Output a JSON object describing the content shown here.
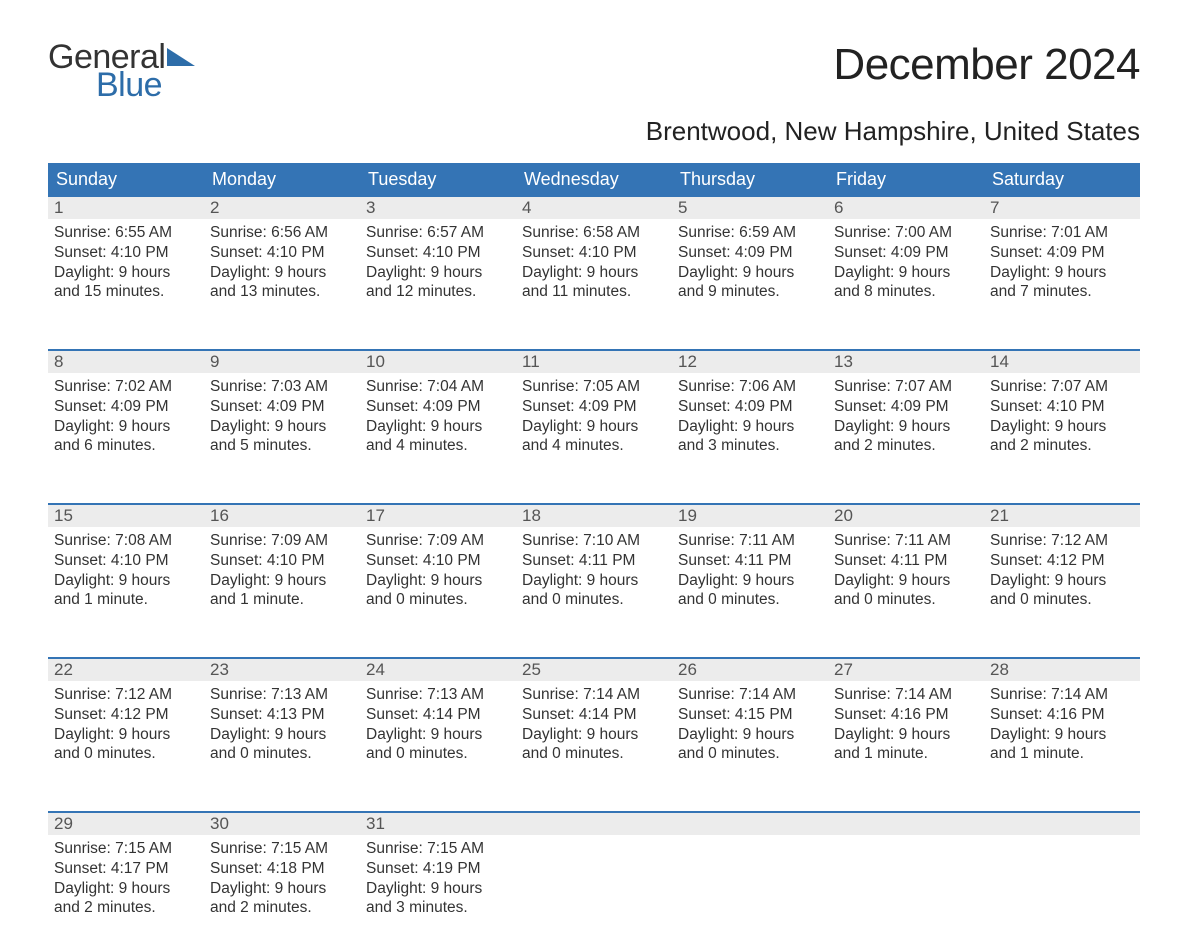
{
  "logo": {
    "line1": "General",
    "line2": "Blue",
    "icon_color": "#2d6da9",
    "text_color_1": "#333333",
    "text_color_2": "#2d6da9"
  },
  "title": "December 2024",
  "subtitle": "Brentwood, New Hampshire, United States",
  "colors": {
    "header_bg": "#3474b5",
    "header_text": "#ffffff",
    "daynum_bg": "#ececec",
    "daynum_text": "#555555",
    "body_text": "#333333",
    "week_border": "#3474b5",
    "page_bg": "#ffffff"
  },
  "fontsize": {
    "title": 44,
    "subtitle": 26,
    "dayhead": 18,
    "daynum": 17,
    "body": 15.5
  },
  "day_headers": [
    "Sunday",
    "Monday",
    "Tuesday",
    "Wednesday",
    "Thursday",
    "Friday",
    "Saturday"
  ],
  "weeks": [
    [
      {
        "n": "1",
        "sr": "Sunrise: 6:55 AM",
        "ss": "Sunset: 4:10 PM",
        "d1": "Daylight: 9 hours",
        "d2": "and 15 minutes."
      },
      {
        "n": "2",
        "sr": "Sunrise: 6:56 AM",
        "ss": "Sunset: 4:10 PM",
        "d1": "Daylight: 9 hours",
        "d2": "and 13 minutes."
      },
      {
        "n": "3",
        "sr": "Sunrise: 6:57 AM",
        "ss": "Sunset: 4:10 PM",
        "d1": "Daylight: 9 hours",
        "d2": "and 12 minutes."
      },
      {
        "n": "4",
        "sr": "Sunrise: 6:58 AM",
        "ss": "Sunset: 4:10 PM",
        "d1": "Daylight: 9 hours",
        "d2": "and 11 minutes."
      },
      {
        "n": "5",
        "sr": "Sunrise: 6:59 AM",
        "ss": "Sunset: 4:09 PM",
        "d1": "Daylight: 9 hours",
        "d2": "and 9 minutes."
      },
      {
        "n": "6",
        "sr": "Sunrise: 7:00 AM",
        "ss": "Sunset: 4:09 PM",
        "d1": "Daylight: 9 hours",
        "d2": "and 8 minutes."
      },
      {
        "n": "7",
        "sr": "Sunrise: 7:01 AM",
        "ss": "Sunset: 4:09 PM",
        "d1": "Daylight: 9 hours",
        "d2": "and 7 minutes."
      }
    ],
    [
      {
        "n": "8",
        "sr": "Sunrise: 7:02 AM",
        "ss": "Sunset: 4:09 PM",
        "d1": "Daylight: 9 hours",
        "d2": "and 6 minutes."
      },
      {
        "n": "9",
        "sr": "Sunrise: 7:03 AM",
        "ss": "Sunset: 4:09 PM",
        "d1": "Daylight: 9 hours",
        "d2": "and 5 minutes."
      },
      {
        "n": "10",
        "sr": "Sunrise: 7:04 AM",
        "ss": "Sunset: 4:09 PM",
        "d1": "Daylight: 9 hours",
        "d2": "and 4 minutes."
      },
      {
        "n": "11",
        "sr": "Sunrise: 7:05 AM",
        "ss": "Sunset: 4:09 PM",
        "d1": "Daylight: 9 hours",
        "d2": "and 4 minutes."
      },
      {
        "n": "12",
        "sr": "Sunrise: 7:06 AM",
        "ss": "Sunset: 4:09 PM",
        "d1": "Daylight: 9 hours",
        "d2": "and 3 minutes."
      },
      {
        "n": "13",
        "sr": "Sunrise: 7:07 AM",
        "ss": "Sunset: 4:09 PM",
        "d1": "Daylight: 9 hours",
        "d2": "and 2 minutes."
      },
      {
        "n": "14",
        "sr": "Sunrise: 7:07 AM",
        "ss": "Sunset: 4:10 PM",
        "d1": "Daylight: 9 hours",
        "d2": "and 2 minutes."
      }
    ],
    [
      {
        "n": "15",
        "sr": "Sunrise: 7:08 AM",
        "ss": "Sunset: 4:10 PM",
        "d1": "Daylight: 9 hours",
        "d2": "and 1 minute."
      },
      {
        "n": "16",
        "sr": "Sunrise: 7:09 AM",
        "ss": "Sunset: 4:10 PM",
        "d1": "Daylight: 9 hours",
        "d2": "and 1 minute."
      },
      {
        "n": "17",
        "sr": "Sunrise: 7:09 AM",
        "ss": "Sunset: 4:10 PM",
        "d1": "Daylight: 9 hours",
        "d2": "and 0 minutes."
      },
      {
        "n": "18",
        "sr": "Sunrise: 7:10 AM",
        "ss": "Sunset: 4:11 PM",
        "d1": "Daylight: 9 hours",
        "d2": "and 0 minutes."
      },
      {
        "n": "19",
        "sr": "Sunrise: 7:11 AM",
        "ss": "Sunset: 4:11 PM",
        "d1": "Daylight: 9 hours",
        "d2": "and 0 minutes."
      },
      {
        "n": "20",
        "sr": "Sunrise: 7:11 AM",
        "ss": "Sunset: 4:11 PM",
        "d1": "Daylight: 9 hours",
        "d2": "and 0 minutes."
      },
      {
        "n": "21",
        "sr": "Sunrise: 7:12 AM",
        "ss": "Sunset: 4:12 PM",
        "d1": "Daylight: 9 hours",
        "d2": "and 0 minutes."
      }
    ],
    [
      {
        "n": "22",
        "sr": "Sunrise: 7:12 AM",
        "ss": "Sunset: 4:12 PM",
        "d1": "Daylight: 9 hours",
        "d2": "and 0 minutes."
      },
      {
        "n": "23",
        "sr": "Sunrise: 7:13 AM",
        "ss": "Sunset: 4:13 PM",
        "d1": "Daylight: 9 hours",
        "d2": "and 0 minutes."
      },
      {
        "n": "24",
        "sr": "Sunrise: 7:13 AM",
        "ss": "Sunset: 4:14 PM",
        "d1": "Daylight: 9 hours",
        "d2": "and 0 minutes."
      },
      {
        "n": "25",
        "sr": "Sunrise: 7:14 AM",
        "ss": "Sunset: 4:14 PM",
        "d1": "Daylight: 9 hours",
        "d2": "and 0 minutes."
      },
      {
        "n": "26",
        "sr": "Sunrise: 7:14 AM",
        "ss": "Sunset: 4:15 PM",
        "d1": "Daylight: 9 hours",
        "d2": "and 0 minutes."
      },
      {
        "n": "27",
        "sr": "Sunrise: 7:14 AM",
        "ss": "Sunset: 4:16 PM",
        "d1": "Daylight: 9 hours",
        "d2": "and 1 minute."
      },
      {
        "n": "28",
        "sr": "Sunrise: 7:14 AM",
        "ss": "Sunset: 4:16 PM",
        "d1": "Daylight: 9 hours",
        "d2": "and 1 minute."
      }
    ],
    [
      {
        "n": "29",
        "sr": "Sunrise: 7:15 AM",
        "ss": "Sunset: 4:17 PM",
        "d1": "Daylight: 9 hours",
        "d2": "and 2 minutes."
      },
      {
        "n": "30",
        "sr": "Sunrise: 7:15 AM",
        "ss": "Sunset: 4:18 PM",
        "d1": "Daylight: 9 hours",
        "d2": "and 2 minutes."
      },
      {
        "n": "31",
        "sr": "Sunrise: 7:15 AM",
        "ss": "Sunset: 4:19 PM",
        "d1": "Daylight: 9 hours",
        "d2": "and 3 minutes."
      },
      null,
      null,
      null,
      null
    ]
  ]
}
